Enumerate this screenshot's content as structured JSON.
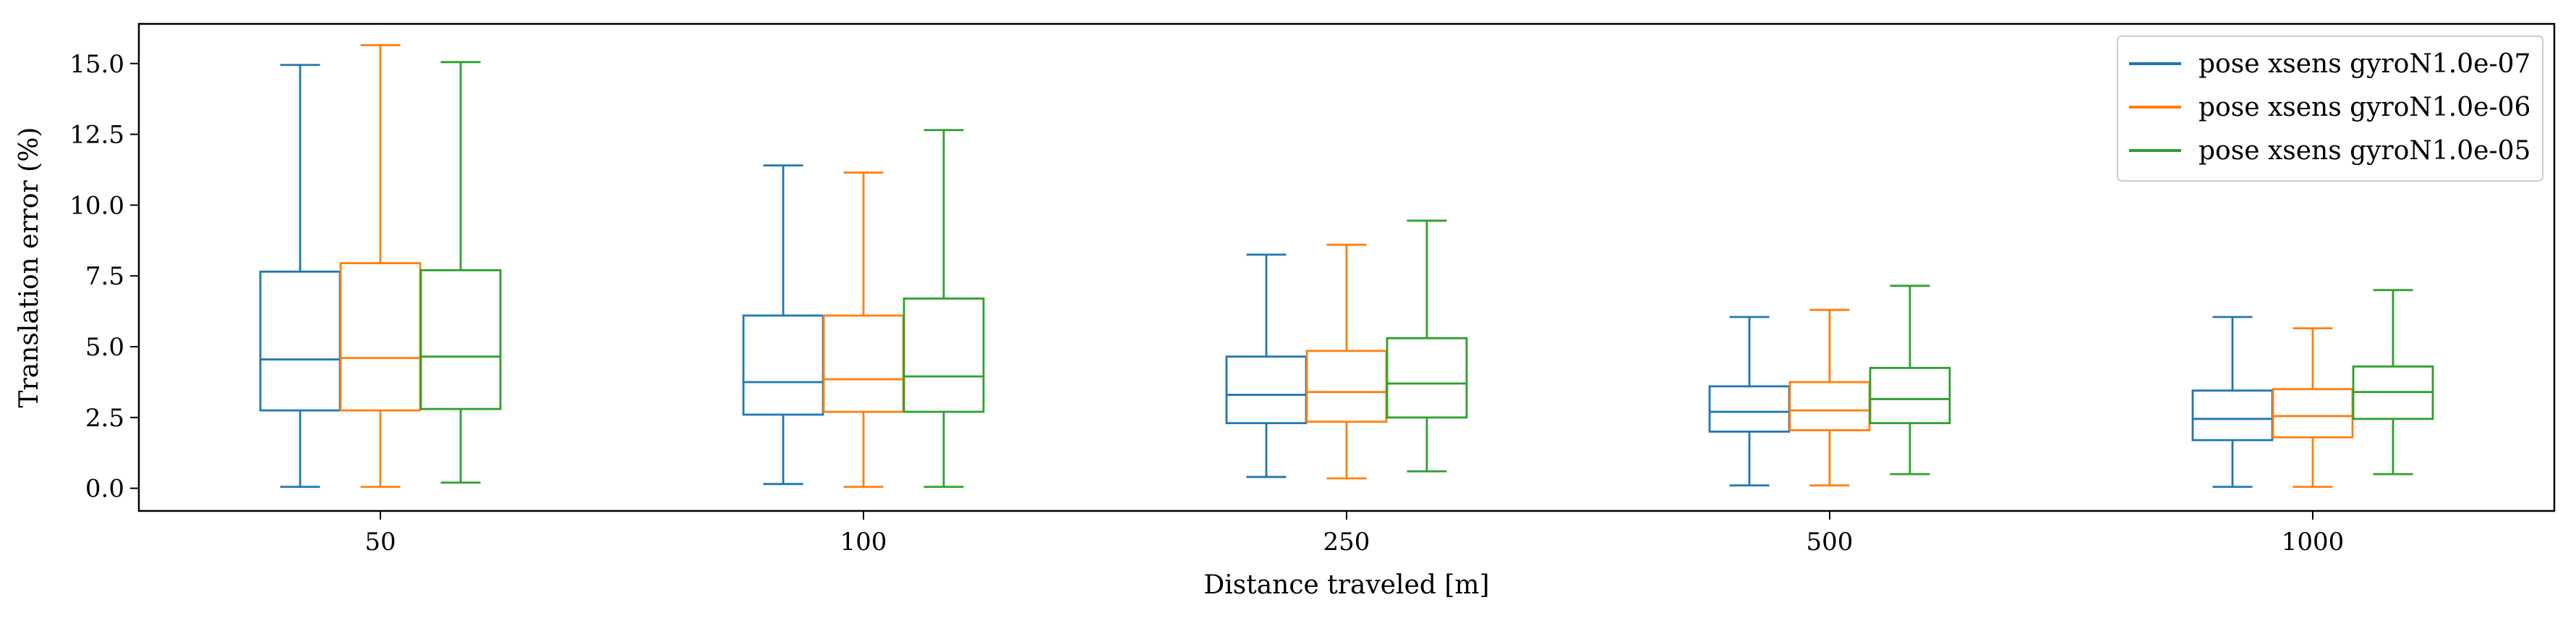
{
  "chart_data": {
    "type": "box",
    "title": "",
    "xlabel": "Distance traveled [m]",
    "ylabel": "Translation error (%)",
    "categories": [
      "50",
      "100",
      "250",
      "500",
      "1000"
    ],
    "ylim": [
      -0.8,
      16.4
    ],
    "yticks": [
      0.0,
      2.5,
      5.0,
      7.5,
      10.0,
      12.5,
      15.0
    ],
    "ytick_labels": [
      "0.0",
      "2.5",
      "5.0",
      "7.5",
      "10.0",
      "12.5",
      "15.0"
    ],
    "grid": false,
    "legend_position": "top-right",
    "series": [
      {
        "name": "pose xsens gyroN1.0e-07",
        "color": "#1f77b4",
        "boxes": [
          {
            "whislo": 0.05,
            "q1": 2.75,
            "med": 4.55,
            "q3": 7.65,
            "whishi": 14.95
          },
          {
            "whislo": 0.15,
            "q1": 2.6,
            "med": 3.75,
            "q3": 6.1,
            "whishi": 11.4
          },
          {
            "whislo": 0.4,
            "q1": 2.3,
            "med": 3.3,
            "q3": 4.65,
            "whishi": 8.25
          },
          {
            "whislo": 0.1,
            "q1": 2.0,
            "med": 2.7,
            "q3": 3.6,
            "whishi": 6.05
          },
          {
            "whislo": 0.05,
            "q1": 1.7,
            "med": 2.45,
            "q3": 3.45,
            "whishi": 6.05
          }
        ]
      },
      {
        "name": "pose xsens gyroN1.0e-06",
        "color": "#ff7f0e",
        "boxes": [
          {
            "whislo": 0.05,
            "q1": 2.75,
            "med": 4.6,
            "q3": 7.95,
            "whishi": 15.65
          },
          {
            "whislo": 0.05,
            "q1": 2.7,
            "med": 3.85,
            "q3": 6.1,
            "whishi": 11.15
          },
          {
            "whislo": 0.35,
            "q1": 2.35,
            "med": 3.4,
            "q3": 4.85,
            "whishi": 8.6
          },
          {
            "whislo": 0.1,
            "q1": 2.05,
            "med": 2.75,
            "q3": 3.75,
            "whishi": 6.3
          },
          {
            "whislo": 0.05,
            "q1": 1.8,
            "med": 2.55,
            "q3": 3.5,
            "whishi": 5.65
          }
        ]
      },
      {
        "name": "pose xsens gyroN1.0e-05",
        "color": "#2ca02c",
        "boxes": [
          {
            "whislo": 0.2,
            "q1": 2.8,
            "med": 4.65,
            "q3": 7.7,
            "whishi": 15.05
          },
          {
            "whislo": 0.05,
            "q1": 2.7,
            "med": 3.95,
            "q3": 6.7,
            "whishi": 12.65
          },
          {
            "whislo": 0.6,
            "q1": 2.5,
            "med": 3.7,
            "q3": 5.3,
            "whishi": 9.45
          },
          {
            "whislo": 0.5,
            "q1": 2.3,
            "med": 3.15,
            "q3": 4.25,
            "whishi": 7.15
          },
          {
            "whislo": 0.5,
            "q1": 2.45,
            "med": 3.4,
            "q3": 4.3,
            "whishi": 7.0
          }
        ]
      }
    ]
  }
}
